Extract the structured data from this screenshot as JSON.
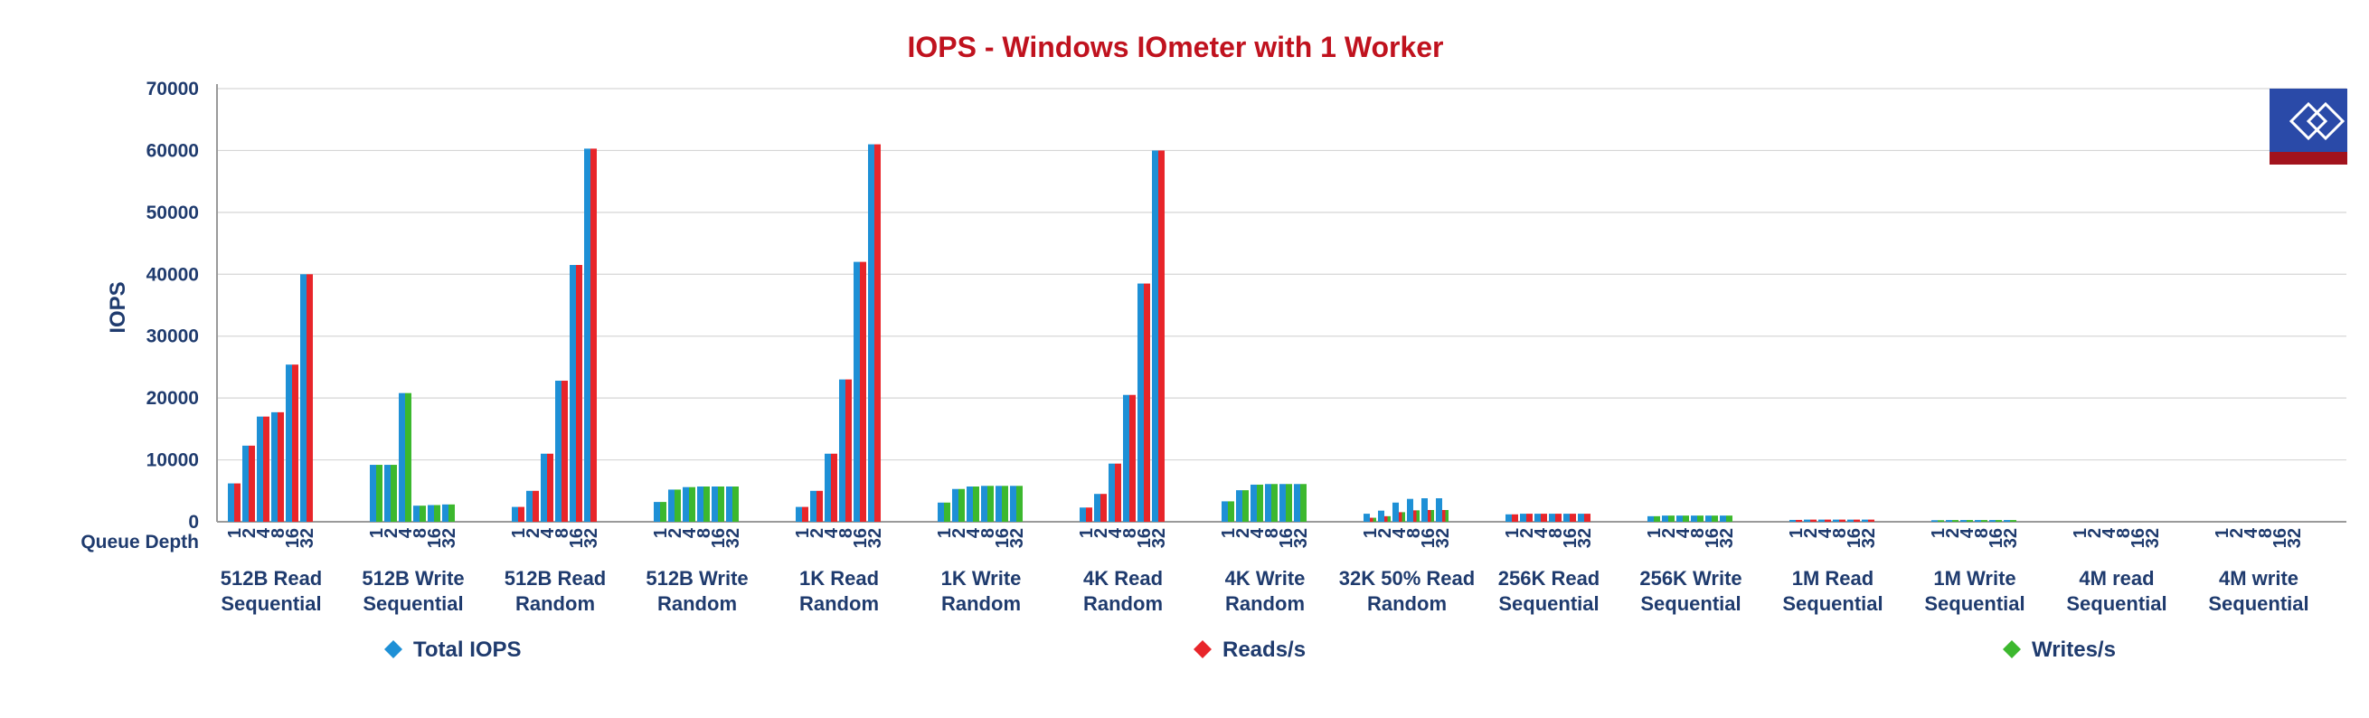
{
  "chart_data": {
    "type": "bar",
    "title": "IOPS - Windows IOmeter with 1 Worker",
    "ylabel": "IOPS",
    "xlabel": "Queue Depth",
    "ylim": [
      0,
      70000
    ],
    "yticks": [
      0,
      10000,
      20000,
      30000,
      40000,
      50000,
      60000,
      70000
    ],
    "grid": true,
    "legend_position": "bottom",
    "queue_depths": [
      "1",
      "2",
      "4",
      "8",
      "16",
      "32"
    ],
    "colors": {
      "total": "#1e90d6",
      "reads": "#e8252a",
      "writes": "#3cb82e",
      "title": "#c0121e",
      "axis_text": "#1f3b6e",
      "logo_blue": "#2a4aa8",
      "logo_red": "#a2131d"
    },
    "legend": [
      {
        "name": "Total IOPS",
        "key": "total"
      },
      {
        "name": "Reads/s",
        "key": "reads"
      },
      {
        "name": "Writes/s",
        "key": "writes"
      }
    ],
    "groups": [
      {
        "line1": "512B Read",
        "line2": "Sequential",
        "kind": "reads",
        "total": [
          6200,
          12300,
          17000,
          17700,
          25400,
          40000
        ],
        "reads": [
          6200,
          12300,
          17000,
          17700,
          25400,
          40000
        ]
      },
      {
        "line1": "512B Write",
        "line2": "Sequential",
        "kind": "writes",
        "total": [
          9200,
          9200,
          20800,
          2600,
          2700,
          2800
        ],
        "writes": [
          9200,
          9200,
          20800,
          2600,
          2700,
          2800
        ]
      },
      {
        "line1": "512B Read",
        "line2": "Random",
        "kind": "reads",
        "total": [
          2400,
          5000,
          11000,
          22800,
          41500,
          60300
        ],
        "reads": [
          2400,
          5000,
          11000,
          22800,
          41500,
          60300
        ]
      },
      {
        "line1": "512B Write",
        "line2": "Random",
        "kind": "writes",
        "total": [
          3200,
          5200,
          5600,
          5700,
          5700,
          5700
        ],
        "writes": [
          3200,
          5200,
          5600,
          5700,
          5700,
          5700
        ]
      },
      {
        "line1": "1K Read",
        "line2": "Random",
        "kind": "reads",
        "total": [
          2400,
          5000,
          11000,
          23000,
          42000,
          61000
        ],
        "reads": [
          2400,
          5000,
          11000,
          23000,
          42000,
          61000
        ]
      },
      {
        "line1": "1K Write",
        "line2": "Random",
        "kind": "writes",
        "total": [
          3100,
          5300,
          5700,
          5800,
          5800,
          5800
        ],
        "writes": [
          3100,
          5300,
          5700,
          5800,
          5800,
          5800
        ]
      },
      {
        "line1": "4K Read",
        "line2": "Random",
        "kind": "reads",
        "total": [
          2300,
          4500,
          9400,
          20500,
          38500,
          60000
        ],
        "reads": [
          2300,
          4500,
          9400,
          20500,
          38500,
          60000
        ]
      },
      {
        "line1": "4K Write",
        "line2": "Random",
        "kind": "writes",
        "total": [
          3300,
          5100,
          6000,
          6100,
          6100,
          6100
        ],
        "writes": [
          3300,
          5100,
          6000,
          6100,
          6100,
          6100
        ]
      },
      {
        "line1": "32K 50% Read",
        "line2": "Random",
        "kind": "mixed",
        "total": [
          1300,
          1800,
          3100,
          3700,
          3800,
          3800
        ],
        "reads": [
          650,
          900,
          1550,
          1850,
          1900,
          1900
        ],
        "writes": [
          650,
          900,
          1550,
          1850,
          1900,
          1900
        ]
      },
      {
        "line1": "256K Read",
        "line2": "Sequential",
        "kind": "reads",
        "total": [
          1200,
          1300,
          1300,
          1300,
          1300,
          1300
        ],
        "reads": [
          1200,
          1300,
          1300,
          1300,
          1300,
          1300
        ]
      },
      {
        "line1": "256K Write",
        "line2": "Sequential",
        "kind": "writes",
        "total": [
          900,
          1000,
          1000,
          1000,
          1000,
          1000
        ],
        "writes": [
          900,
          1000,
          1000,
          1000,
          1000,
          1000
        ]
      },
      {
        "line1": "1M Read",
        "line2": "Sequential",
        "kind": "reads",
        "total": [
          300,
          350,
          350,
          350,
          350,
          350
        ],
        "reads": [
          300,
          350,
          350,
          350,
          350,
          350
        ]
      },
      {
        "line1": "1M Write",
        "line2": "Sequential",
        "kind": "writes",
        "total": [
          250,
          280,
          280,
          280,
          280,
          280
        ],
        "writes": [
          250,
          280,
          280,
          280,
          280,
          280
        ]
      },
      {
        "line1": "4M read",
        "line2": "Sequential",
        "kind": "reads",
        "total": [
          0,
          0,
          0,
          0,
          0,
          0
        ],
        "reads": [
          0,
          0,
          0,
          0,
          0,
          0
        ]
      },
      {
        "line1": "4M write",
        "line2": "Sequential",
        "kind": "writes",
        "total": [
          0,
          0,
          0,
          0,
          0,
          0
        ],
        "writes": [
          0,
          0,
          0,
          0,
          0,
          0
        ]
      }
    ]
  }
}
